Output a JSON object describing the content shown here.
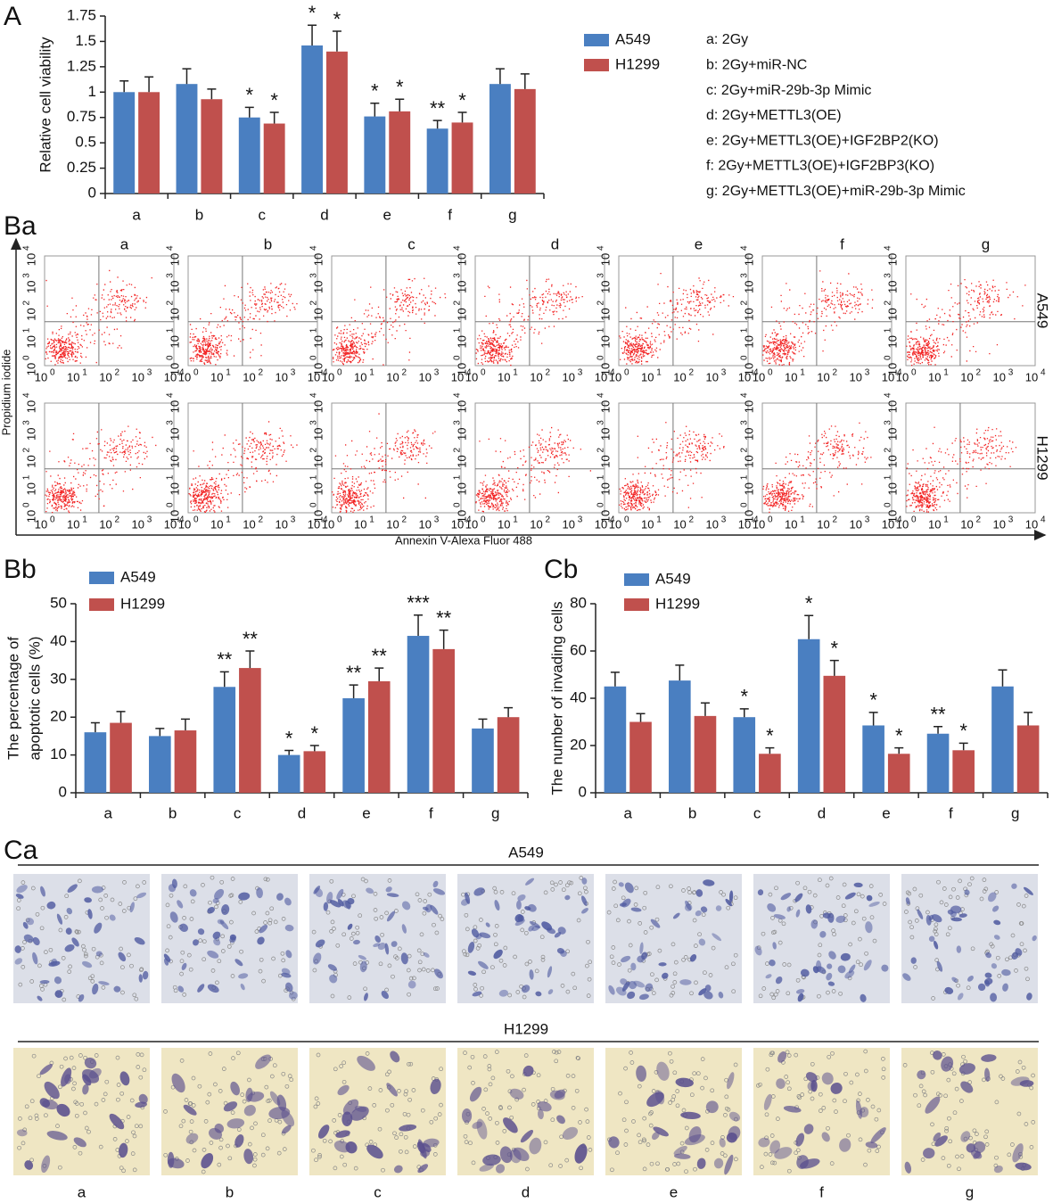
{
  "panel_labels": [
    "A",
    "Ba",
    "Bb",
    "Cb",
    "Ca"
  ],
  "chart_data": [
    {
      "type": "bar",
      "y_label": [
        "Relative cell viability"
      ],
      "categories": [
        "a",
        "b",
        "c",
        "d",
        "e",
        "f",
        "g"
      ],
      "series": [
        {
          "name": "A549",
          "color": "#4a7fc1",
          "values": [
            1.0,
            1.08,
            0.75,
            1.46,
            0.76,
            0.64,
            1.08
          ],
          "errors": [
            0.11,
            0.15,
            0.1,
            0.2,
            0.13,
            0.08,
            0.15
          ],
          "stars": [
            null,
            null,
            "*",
            "*",
            "*",
            "**",
            null
          ]
        },
        {
          "name": "H1299",
          "color": "#c0504d",
          "values": [
            1.0,
            0.93,
            0.69,
            1.4,
            0.81,
            0.7,
            1.03
          ],
          "errors": [
            0.15,
            0.1,
            0.11,
            0.2,
            0.12,
            0.1,
            0.15
          ],
          "stars": [
            null,
            null,
            "*",
            "*",
            "*",
            "*",
            null
          ]
        }
      ],
      "ylim": [
        0,
        1.75
      ],
      "yticks": [
        0,
        0.25,
        0.5,
        0.75,
        1,
        1.25,
        1.5,
        1.75
      ]
    },
    {
      "type": "bar",
      "y_label": [
        "The percentage of",
        "apoptotic cells (%)"
      ],
      "categories": [
        "a",
        "b",
        "c",
        "d",
        "e",
        "f",
        "g"
      ],
      "series": [
        {
          "name": "A549",
          "color": "#4a7fc1",
          "values": [
            16,
            15,
            28,
            10,
            25,
            41.5,
            17
          ],
          "errors": [
            2.5,
            2,
            4,
            1.2,
            3.5,
            5.5,
            2.5
          ],
          "stars": [
            null,
            null,
            "**",
            "*",
            "**",
            "***",
            null
          ]
        },
        {
          "name": "H1299",
          "color": "#c0504d",
          "values": [
            18.5,
            16.5,
            33,
            11,
            29.5,
            38,
            20
          ],
          "errors": [
            3,
            3,
            4.5,
            1.5,
            3.5,
            5,
            2.5
          ],
          "stars": [
            null,
            null,
            "**",
            "*",
            "**",
            "**",
            null
          ]
        }
      ],
      "ylim": [
        0,
        50
      ],
      "yticks": [
        0,
        10,
        20,
        30,
        40,
        50
      ]
    },
    {
      "type": "bar",
      "y_label": [
        "The number of invading cells"
      ],
      "categories": [
        "a",
        "b",
        "c",
        "d",
        "e",
        "f",
        "g"
      ],
      "series": [
        {
          "name": "A549",
          "color": "#4a7fc1",
          "values": [
            45,
            47.5,
            32,
            65,
            28.5,
            25,
            45
          ],
          "errors": [
            6,
            6.5,
            3.5,
            10,
            5.5,
            3,
            7
          ],
          "stars": [
            null,
            null,
            "*",
            "*",
            "*",
            "**",
            null
          ]
        },
        {
          "name": "H1299",
          "color": "#c0504d",
          "values": [
            30,
            32.5,
            16.5,
            49.5,
            16.5,
            18,
            28.5
          ],
          "errors": [
            3.5,
            5.5,
            2.5,
            6.5,
            2.5,
            3,
            5.5
          ],
          "stars": [
            null,
            null,
            "*",
            "*",
            "*",
            "*",
            null
          ]
        }
      ],
      "ylim": [
        0,
        80
      ],
      "yticks": [
        0,
        20,
        40,
        60,
        80
      ]
    }
  ],
  "legend_notes": [
    "a: 2Gy",
    "b: 2Gy+miR-NC",
    "c: 2Gy+miR-29b-3p Mimic",
    "d: 2Gy+METTL3(OE)",
    "e: 2Gy+METTL3(OE)+IGF2BP2(KO)",
    "f: 2Gy+METTL3(OE)+IGF2BP3(KO)",
    "g: 2Gy+METTL3(OE)+miR-29b-3p Mimic"
  ],
  "flow": {
    "columns": [
      "a",
      "b",
      "c",
      "d",
      "e",
      "f",
      "g"
    ],
    "rows": [
      "A549",
      "H1299"
    ],
    "y_label": "Propidium iodide",
    "x_label": "Annexin V-Alexa Fluor 488",
    "tick_base": "10",
    "tick_exponents": [
      "0",
      "1",
      "2",
      "3",
      "4"
    ]
  },
  "invasion": {
    "rows": [
      "A549",
      "H1299"
    ],
    "columns": [
      "a",
      "b",
      "c",
      "d",
      "e",
      "f",
      "g"
    ]
  }
}
